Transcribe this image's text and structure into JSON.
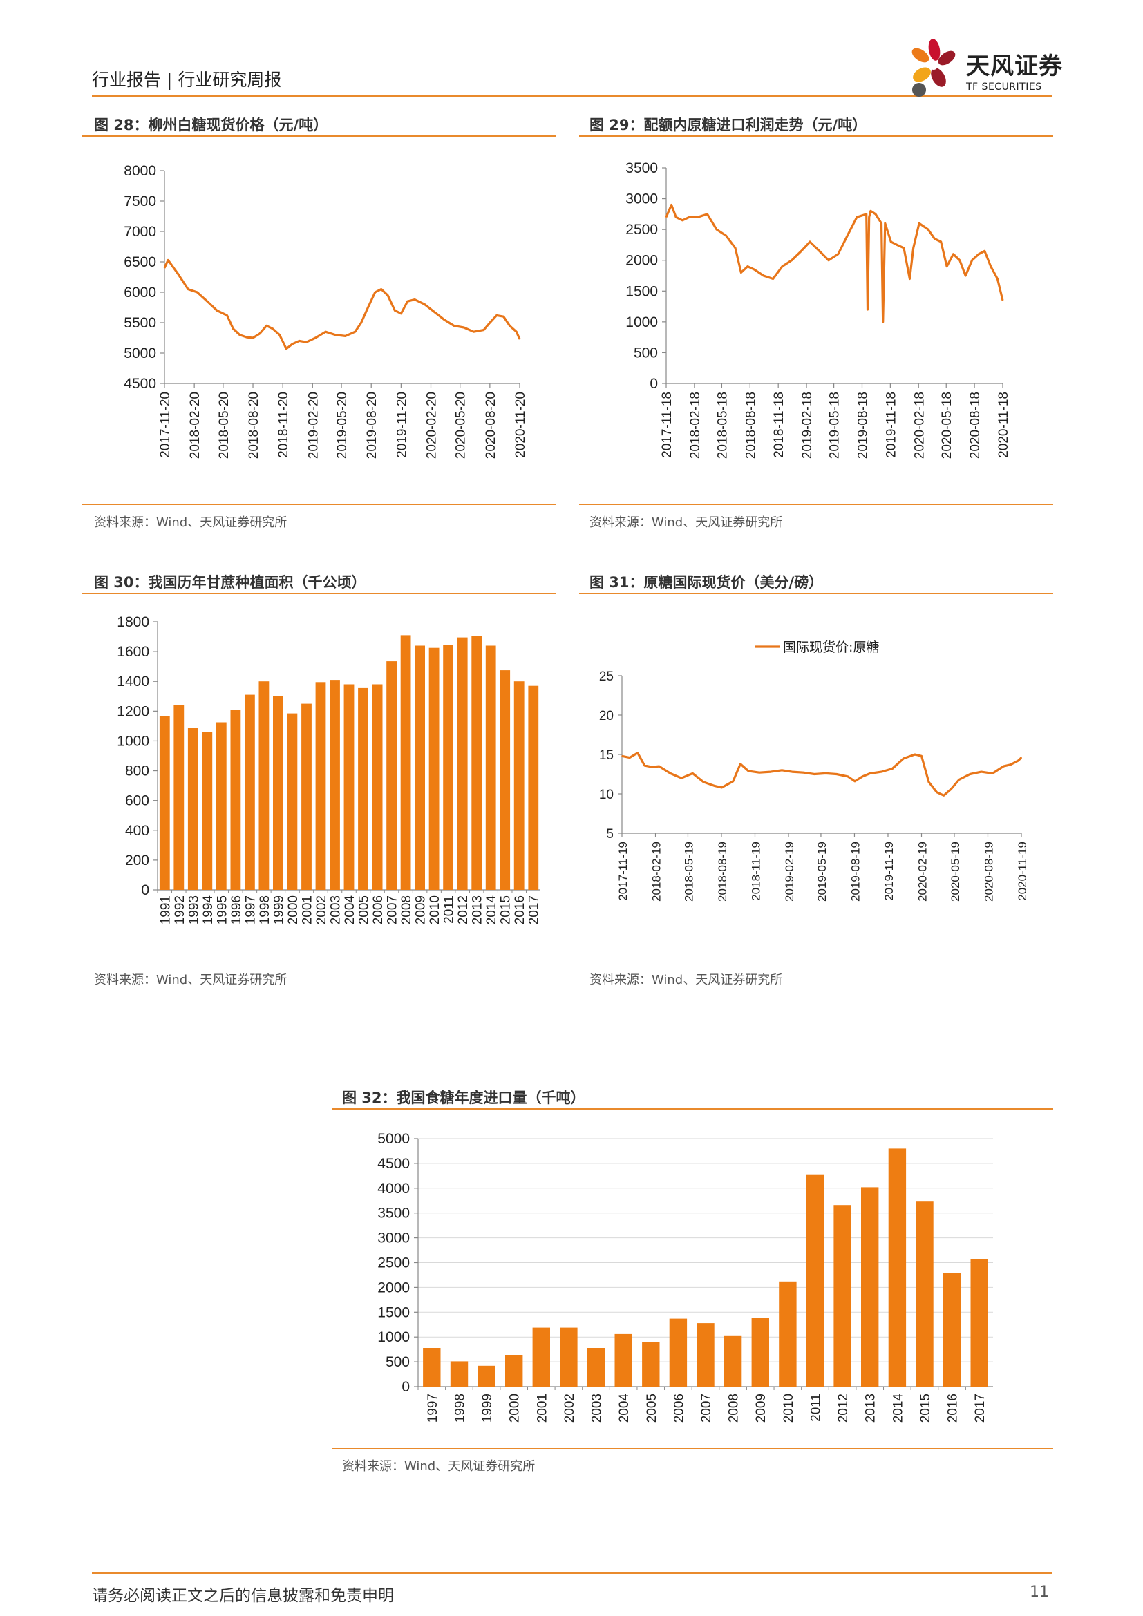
{
  "header": {
    "left_text": "行业报告 | 行业研究周报",
    "brand_cn": "天风证券",
    "brand_en": "TF SECURITIES"
  },
  "footer": {
    "disclaimer": "请务必阅读正文之后的信息披露和免责申明",
    "page_number": "11"
  },
  "colors": {
    "accent": "#e98a2c",
    "bar": "#ee7d12",
    "line": "#e8761a"
  },
  "figures": [
    {
      "title": "图 28：柳州白糖现货价格（元/吨）",
      "source": "资料来源：Wind、天风证券研究所"
    },
    {
      "title": "图 29：配额内原糖进口利润走势（元/吨）",
      "source": "资料来源：Wind、天风证券研究所"
    },
    {
      "title": "图 30：我国历年甘蔗种植面积（千公顷）",
      "source": "资料来源：Wind、天风证券研究所"
    },
    {
      "title": "图 31：原糖国际现货价（美分/磅）",
      "source": "资料来源：Wind、天风证券研究所"
    },
    {
      "title": "图 32：我国食糖年度进口量（千吨）",
      "source": "资料来源：Wind、天风证券研究所"
    }
  ],
  "chart_data": [
    {
      "type": "line",
      "title": "图 28：柳州白糖现货价格（元/吨）",
      "ylim": [
        4500,
        8000
      ],
      "yticks": [
        "4500",
        "5000",
        "5500",
        "6000",
        "6500",
        "7000",
        "7500",
        "8000"
      ],
      "xticks": [
        "2017-11-20",
        "2018-02-20",
        "2018-05-20",
        "2018-08-20",
        "2018-11-20",
        "2019-02-20",
        "2019-05-20",
        "2019-08-20",
        "2019-11-20",
        "2020-02-20",
        "2020-05-20",
        "2020-08-20",
        "2020-11-20"
      ],
      "x": [
        "2017-11-20",
        "2017-12-01",
        "2018-01-01",
        "2018-02-01",
        "2018-03-01",
        "2018-04-01",
        "2018-05-01",
        "2018-06-01",
        "2018-06-20",
        "2018-07-10",
        "2018-08-01",
        "2018-08-20",
        "2018-09-10",
        "2018-10-01",
        "2018-10-20",
        "2018-11-10",
        "2018-12-01",
        "2018-12-20",
        "2019-01-10",
        "2019-02-01",
        "2019-03-01",
        "2019-04-01",
        "2019-05-01",
        "2019-06-01",
        "2019-07-01",
        "2019-07-20",
        "2019-08-10",
        "2019-09-01",
        "2019-09-20",
        "2019-10-10",
        "2019-11-01",
        "2019-11-20",
        "2019-12-10",
        "2020-01-01",
        "2020-02-01",
        "2020-03-01",
        "2020-04-01",
        "2020-05-01",
        "2020-06-01",
        "2020-07-01",
        "2020-08-01",
        "2020-08-20",
        "2020-09-10",
        "2020-10-01",
        "2020-10-20",
        "2020-11-10",
        "2020-11-20"
      ],
      "series": [
        {
          "values": [
            6400,
            6530,
            6300,
            6050,
            6000,
            5850,
            5700,
            5620,
            5400,
            5300,
            5260,
            5250,
            5320,
            5450,
            5400,
            5300,
            5070,
            5150,
            5200,
            5180,
            5250,
            5350,
            5300,
            5280,
            5350,
            5500,
            5750,
            6000,
            6050,
            5950,
            5700,
            5650,
            5850,
            5880,
            5800,
            5680,
            5550,
            5450,
            5420,
            5350,
            5380,
            5500,
            5620,
            5600,
            5450,
            5350,
            5230
          ]
        }
      ]
    },
    {
      "type": "line",
      "title": "图 29：配额内原糖进口利润走势（元/吨）",
      "ylim": [
        0,
        3500
      ],
      "yticks": [
        "0",
        "500",
        "1000",
        "1500",
        "2000",
        "2500",
        "3000",
        "3500"
      ],
      "xticks": [
        "2017-11-18",
        "2018-02-18",
        "2018-05-18",
        "2018-08-18",
        "2018-11-18",
        "2019-02-18",
        "2019-05-18",
        "2019-08-18",
        "2019-11-18",
        "2020-02-18",
        "2020-05-18",
        "2020-08-18",
        "2020-11-18"
      ],
      "x": [
        "2017-11-18",
        "2017-12-05",
        "2017-12-20",
        "2018-01-10",
        "2018-02-01",
        "2018-03-01",
        "2018-04-01",
        "2018-05-01",
        "2018-06-01",
        "2018-07-01",
        "2018-07-20",
        "2018-08-10",
        "2018-09-01",
        "2018-10-01",
        "2018-11-01",
        "2018-12-01",
        "2019-01-01",
        "2019-02-01",
        "2019-03-01",
        "2019-04-01",
        "2019-05-01",
        "2019-06-01",
        "2019-07-01",
        "2019-08-01",
        "2019-09-01",
        "2019-09-05",
        "2019-09-10",
        "2019-09-15",
        "2019-10-01",
        "2019-10-20",
        "2019-10-25",
        "2019-11-01",
        "2019-11-20",
        "2019-12-10",
        "2020-01-01",
        "2020-01-20",
        "2020-02-01",
        "2020-02-20",
        "2020-03-20",
        "2020-04-10",
        "2020-05-01",
        "2020-05-20",
        "2020-06-10",
        "2020-07-01",
        "2020-07-20",
        "2020-08-10",
        "2020-09-01",
        "2020-09-20",
        "2020-10-10",
        "2020-11-01",
        "2020-11-18"
      ],
      "series": [
        {
          "values": [
            2700,
            2900,
            2700,
            2650,
            2700,
            2700,
            2750,
            2500,
            2400,
            2200,
            1800,
            1900,
            1850,
            1750,
            1700,
            1900,
            2000,
            2150,
            2300,
            2150,
            2000,
            2100,
            2400,
            2700,
            2750,
            1200,
            2700,
            2800,
            2750,
            2600,
            1000,
            2600,
            2300,
            2250,
            2200,
            1700,
            2200,
            2600,
            2500,
            2350,
            2300,
            1900,
            2100,
            2000,
            1750,
            2000,
            2100,
            2150,
            1900,
            1700,
            1350
          ]
        }
      ]
    },
    {
      "type": "bar",
      "title": "图 30：我国历年甘蔗种植面积（千公顷）",
      "ylim": [
        0,
        1800
      ],
      "yticks": [
        "0",
        "200",
        "400",
        "600",
        "800",
        "1000",
        "1200",
        "1400",
        "1600",
        "1800"
      ],
      "categories": [
        "1991",
        "1992",
        "1993",
        "1994",
        "1995",
        "1996",
        "1997",
        "1998",
        "1999",
        "2000",
        "2001",
        "2002",
        "2003",
        "2004",
        "2005",
        "2006",
        "2007",
        "2008",
        "2009",
        "2010",
        "2011",
        "2012",
        "2013",
        "2014",
        "2015",
        "2016",
        "2017"
      ],
      "values": [
        1165,
        1240,
        1090,
        1060,
        1125,
        1210,
        1310,
        1400,
        1300,
        1185,
        1250,
        1395,
        1410,
        1380,
        1355,
        1380,
        1535,
        1710,
        1640,
        1625,
        1645,
        1695,
        1705,
        1640,
        1475,
        1400,
        1370
      ]
    },
    {
      "type": "line",
      "title": "图 31：原糖国际现货价（美分/磅）",
      "legend": [
        "国际现货价:原糖"
      ],
      "legend_position": "top",
      "ylim": [
        5,
        25
      ],
      "yticks": [
        "5",
        "10",
        "15",
        "20",
        "25"
      ],
      "xticks": [
        "2017-11-19",
        "2018-02-19",
        "2018-05-19",
        "2018-08-19",
        "2018-11-19",
        "2019-02-19",
        "2019-05-19",
        "2019-08-19",
        "2019-11-19",
        "2020-02-19",
        "2020-05-19",
        "2020-08-19",
        "2020-11-19"
      ],
      "x": [
        "2017-11-19",
        "2017-12-10",
        "2018-01-01",
        "2018-01-20",
        "2018-02-10",
        "2018-03-01",
        "2018-04-01",
        "2018-05-01",
        "2018-06-01",
        "2018-07-01",
        "2018-08-01",
        "2018-08-20",
        "2018-09-20",
        "2018-10-10",
        "2018-11-01",
        "2018-12-01",
        "2019-01-01",
        "2019-02-01",
        "2019-03-01",
        "2019-04-01",
        "2019-05-01",
        "2019-06-01",
        "2019-07-01",
        "2019-08-01",
        "2019-08-20",
        "2019-09-10",
        "2019-10-01",
        "2019-11-01",
        "2019-12-01",
        "2020-01-01",
        "2020-02-01",
        "2020-02-19",
        "2020-03-10",
        "2020-04-01",
        "2020-04-20",
        "2020-05-10",
        "2020-06-01",
        "2020-07-01",
        "2020-08-01",
        "2020-09-01",
        "2020-10-01",
        "2020-10-20",
        "2020-11-10",
        "2020-11-19"
      ],
      "series": [
        {
          "name": "国际现货价:原糖",
          "values": [
            14.8,
            14.6,
            15.2,
            13.6,
            13.4,
            13.5,
            12.6,
            12.0,
            12.6,
            11.5,
            11.0,
            10.8,
            11.6,
            13.8,
            12.9,
            12.7,
            12.8,
            13.0,
            12.8,
            12.7,
            12.5,
            12.6,
            12.5,
            12.2,
            11.6,
            12.2,
            12.6,
            12.8,
            13.2,
            14.5,
            15.0,
            14.8,
            11.5,
            10.2,
            9.8,
            10.6,
            11.8,
            12.5,
            12.8,
            12.6,
            13.5,
            13.7,
            14.2,
            14.6
          ]
        }
      ]
    },
    {
      "type": "bar",
      "title": "图 32：我国食糖年度进口量（千吨）",
      "ylim": [
        0,
        5000
      ],
      "yticks": [
        "0",
        "500",
        "1000",
        "1500",
        "2000",
        "2500",
        "3000",
        "3500",
        "4000",
        "4500",
        "5000"
      ],
      "categories": [
        "1997",
        "1998",
        "1999",
        "2000",
        "2001",
        "2002",
        "2003",
        "2004",
        "2005",
        "2006",
        "2007",
        "2008",
        "2009",
        "2010",
        "2011",
        "2012",
        "2013",
        "2014",
        "2015",
        "2016",
        "2017"
      ],
      "values": [
        780,
        510,
        420,
        640,
        1190,
        1190,
        780,
        1060,
        900,
        1370,
        1280,
        1020,
        1390,
        2120,
        4280,
        3660,
        4020,
        4800,
        3730,
        2290,
        2570
      ]
    }
  ]
}
